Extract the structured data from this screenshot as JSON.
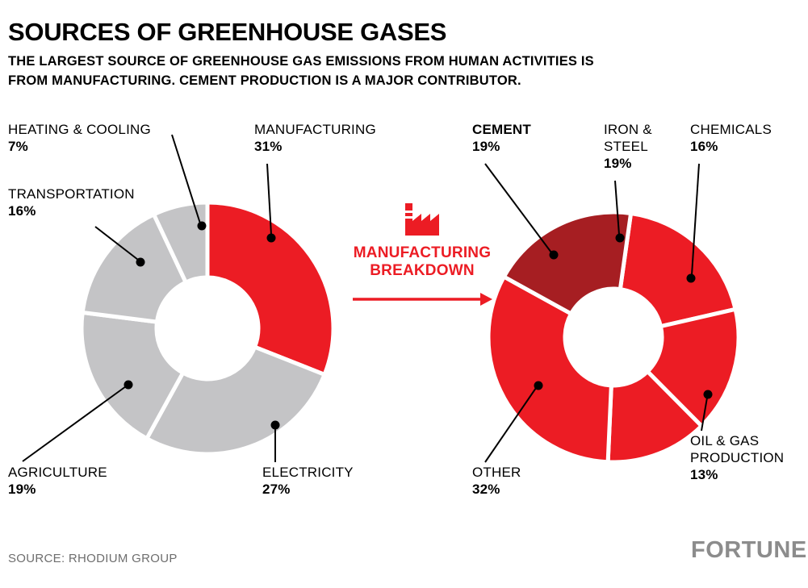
{
  "header": {
    "title": "SOURCES OF GREENHOUSE GASES",
    "subtitle_lines": [
      "THE LARGEST SOURCE OF GREENHOUSE GAS EMISSIONS FROM HUMAN ACTIVITIES IS",
      "FROM MANUFACTURING. CEMENT PRODUCTION IS A MAJOR CONTRIBUTOR."
    ]
  },
  "connector": {
    "label": "MANUFACTURING BREAKDOWN",
    "icon": "factory-icon",
    "color": "#EC1C24"
  },
  "footer": {
    "source": "SOURCE: RHODIUM GROUP",
    "logo": "FORTUNE"
  },
  "colors": {
    "red": "#EC1C24",
    "dark_red": "#A61E22",
    "gray": "#C4C4C6",
    "leader_line": "#000000",
    "source_gray": "#6E6E6E",
    "logo_gray": "#8C8C8C"
  },
  "chart_data": [
    {
      "type": "donut",
      "name": "sources-of-greenhouse-gases",
      "start_angle_deg": 0,
      "legend_position": "callout-labels",
      "slices": [
        {
          "label": "MANUFACTURING",
          "pct_label": "31%",
          "value": 31,
          "color": "#EC1C24",
          "emphasis": true
        },
        {
          "label": "ELECTRICITY",
          "pct_label": "27%",
          "value": 27,
          "color": "#C4C4C6"
        },
        {
          "label": "AGRICULTURE",
          "pct_label": "19%",
          "value": 19,
          "color": "#C4C4C6"
        },
        {
          "label": "TRANSPORTATION",
          "pct_label": "16%",
          "value": 16,
          "color": "#C4C4C6"
        },
        {
          "label": "HEATING & COOLING",
          "pct_label": "7%",
          "value": 7,
          "color": "#C4C4C6"
        }
      ]
    },
    {
      "type": "donut",
      "name": "manufacturing-breakdown",
      "start_angle_deg": 8,
      "legend_position": "callout-labels",
      "slices": [
        {
          "label": "IRON & STEEL",
          "pct_label": "19%",
          "value": 19,
          "color": "#EC1C24"
        },
        {
          "label": "CHEMICALS",
          "pct_label": "16%",
          "value": 16,
          "color": "#EC1C24"
        },
        {
          "label": "OIL & GAS PRODUCTION",
          "pct_label": "13%",
          "value": 13,
          "color": "#EC1C24"
        },
        {
          "label": "OTHER",
          "pct_label": "32%",
          "value": 32,
          "color": "#EC1C24"
        },
        {
          "label": "CEMENT",
          "pct_label": "19%",
          "value": 19,
          "color": "#A61E22",
          "emphasis": true
        }
      ]
    }
  ]
}
